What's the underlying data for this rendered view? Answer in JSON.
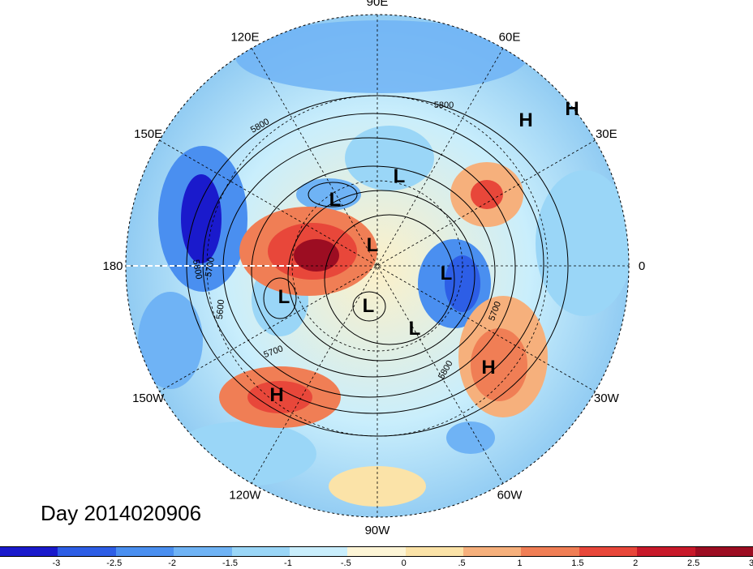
{
  "title": "Day 2014020906",
  "longitude_labels": [
    {
      "text": "90E",
      "angle": 90
    },
    {
      "text": "60E",
      "angle": 60
    },
    {
      "text": "30E",
      "angle": 30
    },
    {
      "text": "0",
      "angle": 0
    },
    {
      "text": "30W",
      "angle": -30
    },
    {
      "text": "60W",
      "angle": -60
    },
    {
      "text": "90W",
      "angle": -90
    },
    {
      "text": "120W",
      "angle": -120
    },
    {
      "text": "150W",
      "angle": -150
    },
    {
      "text": "180",
      "angle": 180
    },
    {
      "text": "150E",
      "angle": 150
    },
    {
      "text": "120E",
      "angle": 120
    }
  ],
  "contour_labels": [
    "5800",
    "5700",
    "5600",
    "5700",
    "5800",
    "5800",
    "5700",
    "5800"
  ],
  "systems": [
    {
      "type": "H",
      "label": "H"
    },
    {
      "type": "H",
      "label": "H"
    },
    {
      "type": "H",
      "label": "H"
    },
    {
      "type": "H",
      "label": "H"
    },
    {
      "type": "L",
      "label": "L"
    },
    {
      "type": "L",
      "label": "L"
    },
    {
      "type": "L",
      "label": "L"
    },
    {
      "type": "L",
      "label": "L"
    },
    {
      "type": "L",
      "label": "L"
    },
    {
      "type": "L",
      "label": "L"
    },
    {
      "type": "L",
      "label": "L"
    }
  ],
  "colorbar": {
    "colors": [
      "#1a1acc",
      "#2d5ee6",
      "#4a8ff0",
      "#6fb3f5",
      "#9ad6f7",
      "#c9eefc",
      "#fdf5d6",
      "#fbe3a8",
      "#f6b07c",
      "#f07e55",
      "#e8473a",
      "#c8192a",
      "#9c0d22"
    ],
    "ticks": [
      "-3",
      "-2.5",
      "-2",
      "-1.5",
      "-1",
      "-.5",
      "0",
      ".5",
      "1",
      "1.5",
      "2",
      "2.5",
      "3"
    ]
  }
}
